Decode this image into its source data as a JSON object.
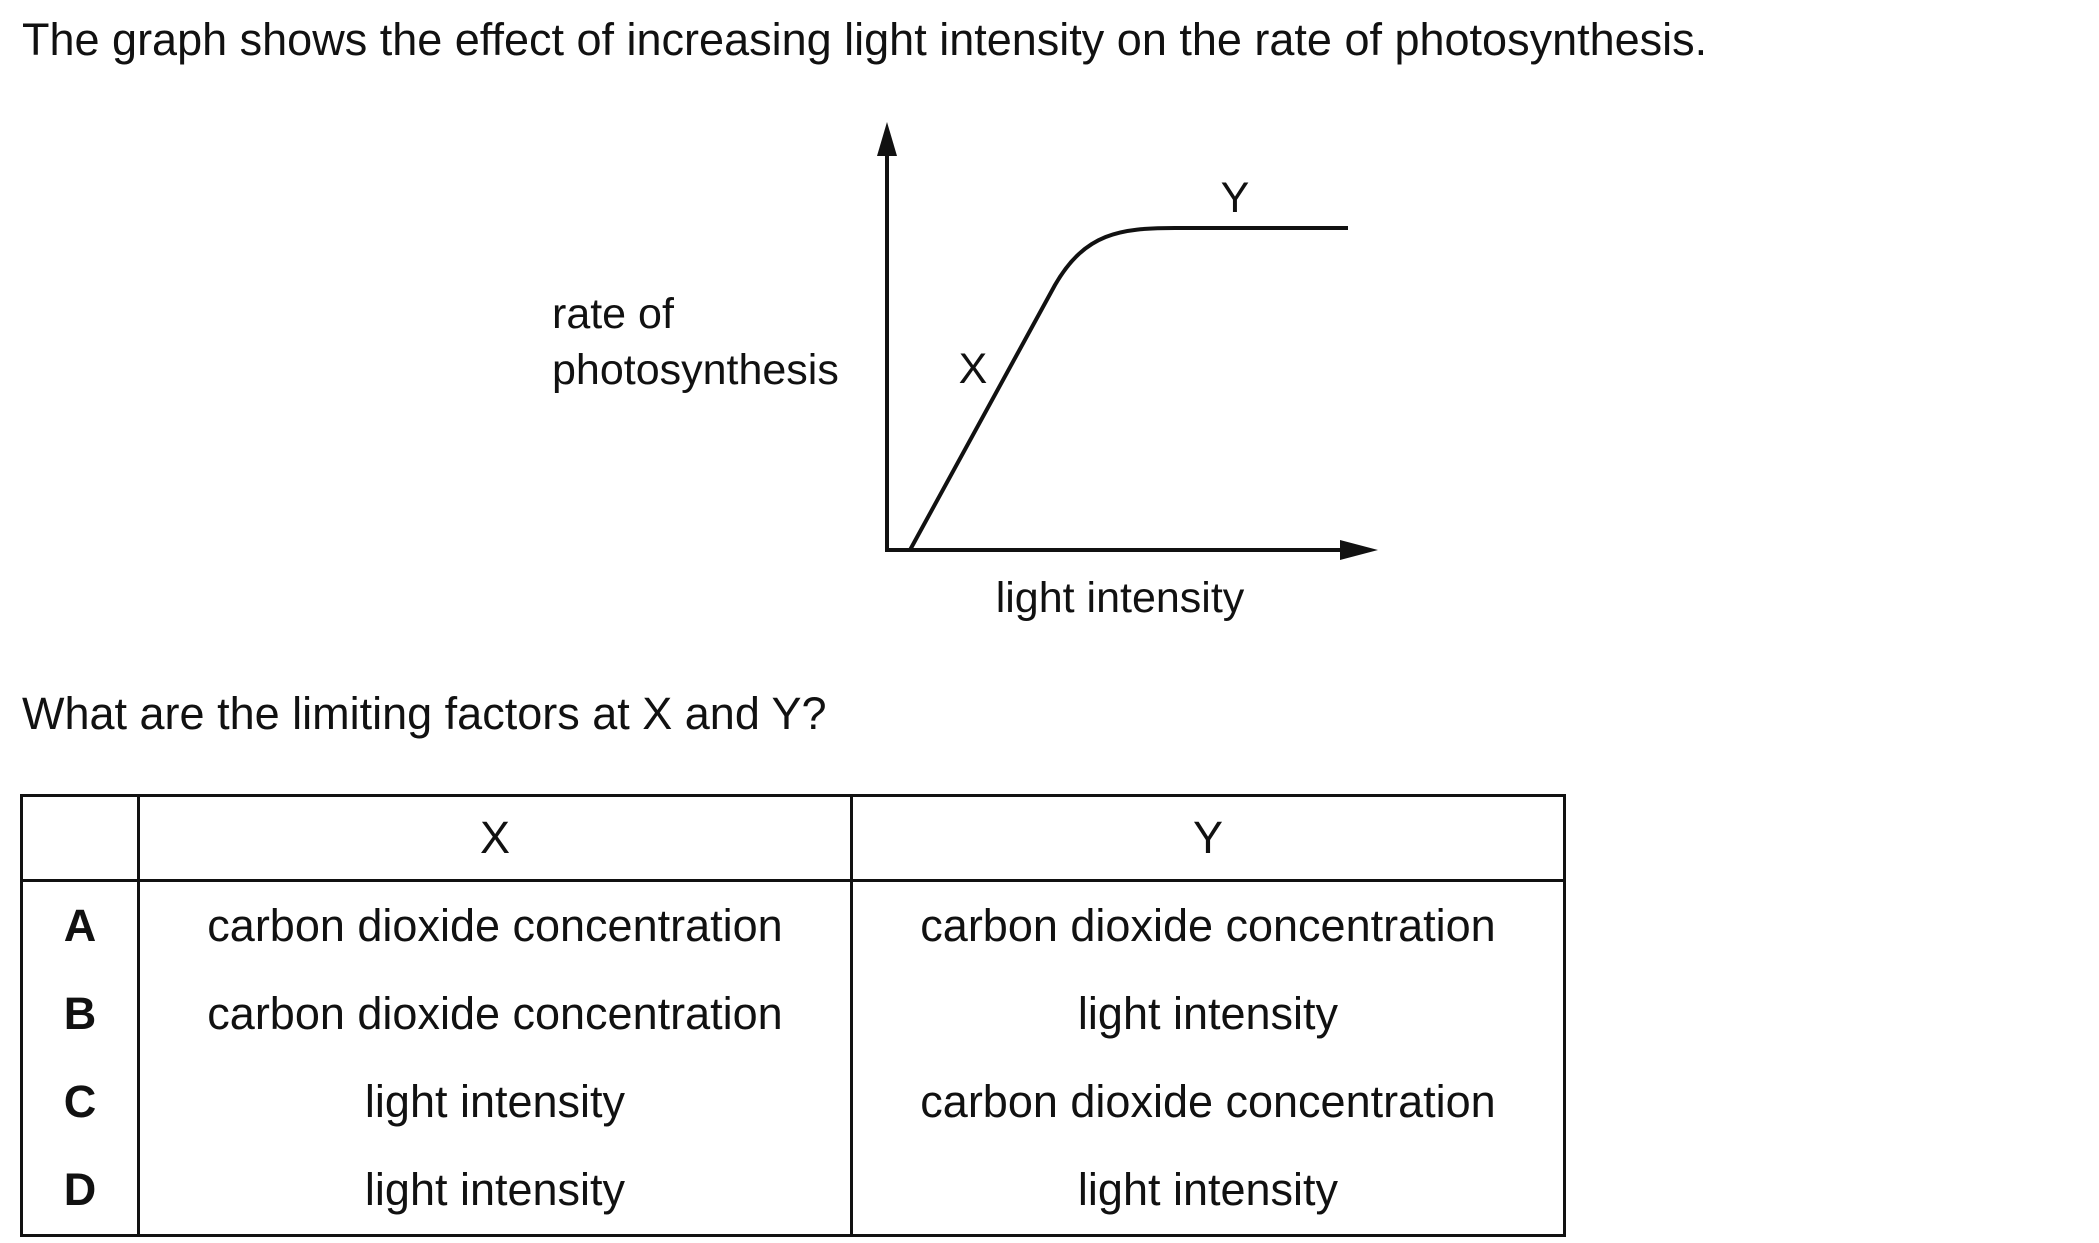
{
  "question": {
    "intro": "The graph shows the effect of increasing light intensity on the rate of photosynthesis.",
    "prompt": "What are the limiting factors at X and Y?"
  },
  "graph": {
    "y_label_line1": "rate of",
    "y_label_line2": "photosynthesis",
    "x_label": "light intensity",
    "label_x": "X",
    "label_y": "Y"
  },
  "table": {
    "header": [
      "",
      "X",
      "Y"
    ],
    "rows": [
      {
        "option": "A",
        "x": "carbon dioxide concentration",
        "y": "carbon dioxide concentration"
      },
      {
        "option": "B",
        "x": "carbon dioxide concentration",
        "y": "light intensity"
      },
      {
        "option": "C",
        "x": "light intensity",
        "y": "carbon dioxide concentration"
      },
      {
        "option": "D",
        "x": "light intensity",
        "y": "light intensity"
      }
    ]
  }
}
